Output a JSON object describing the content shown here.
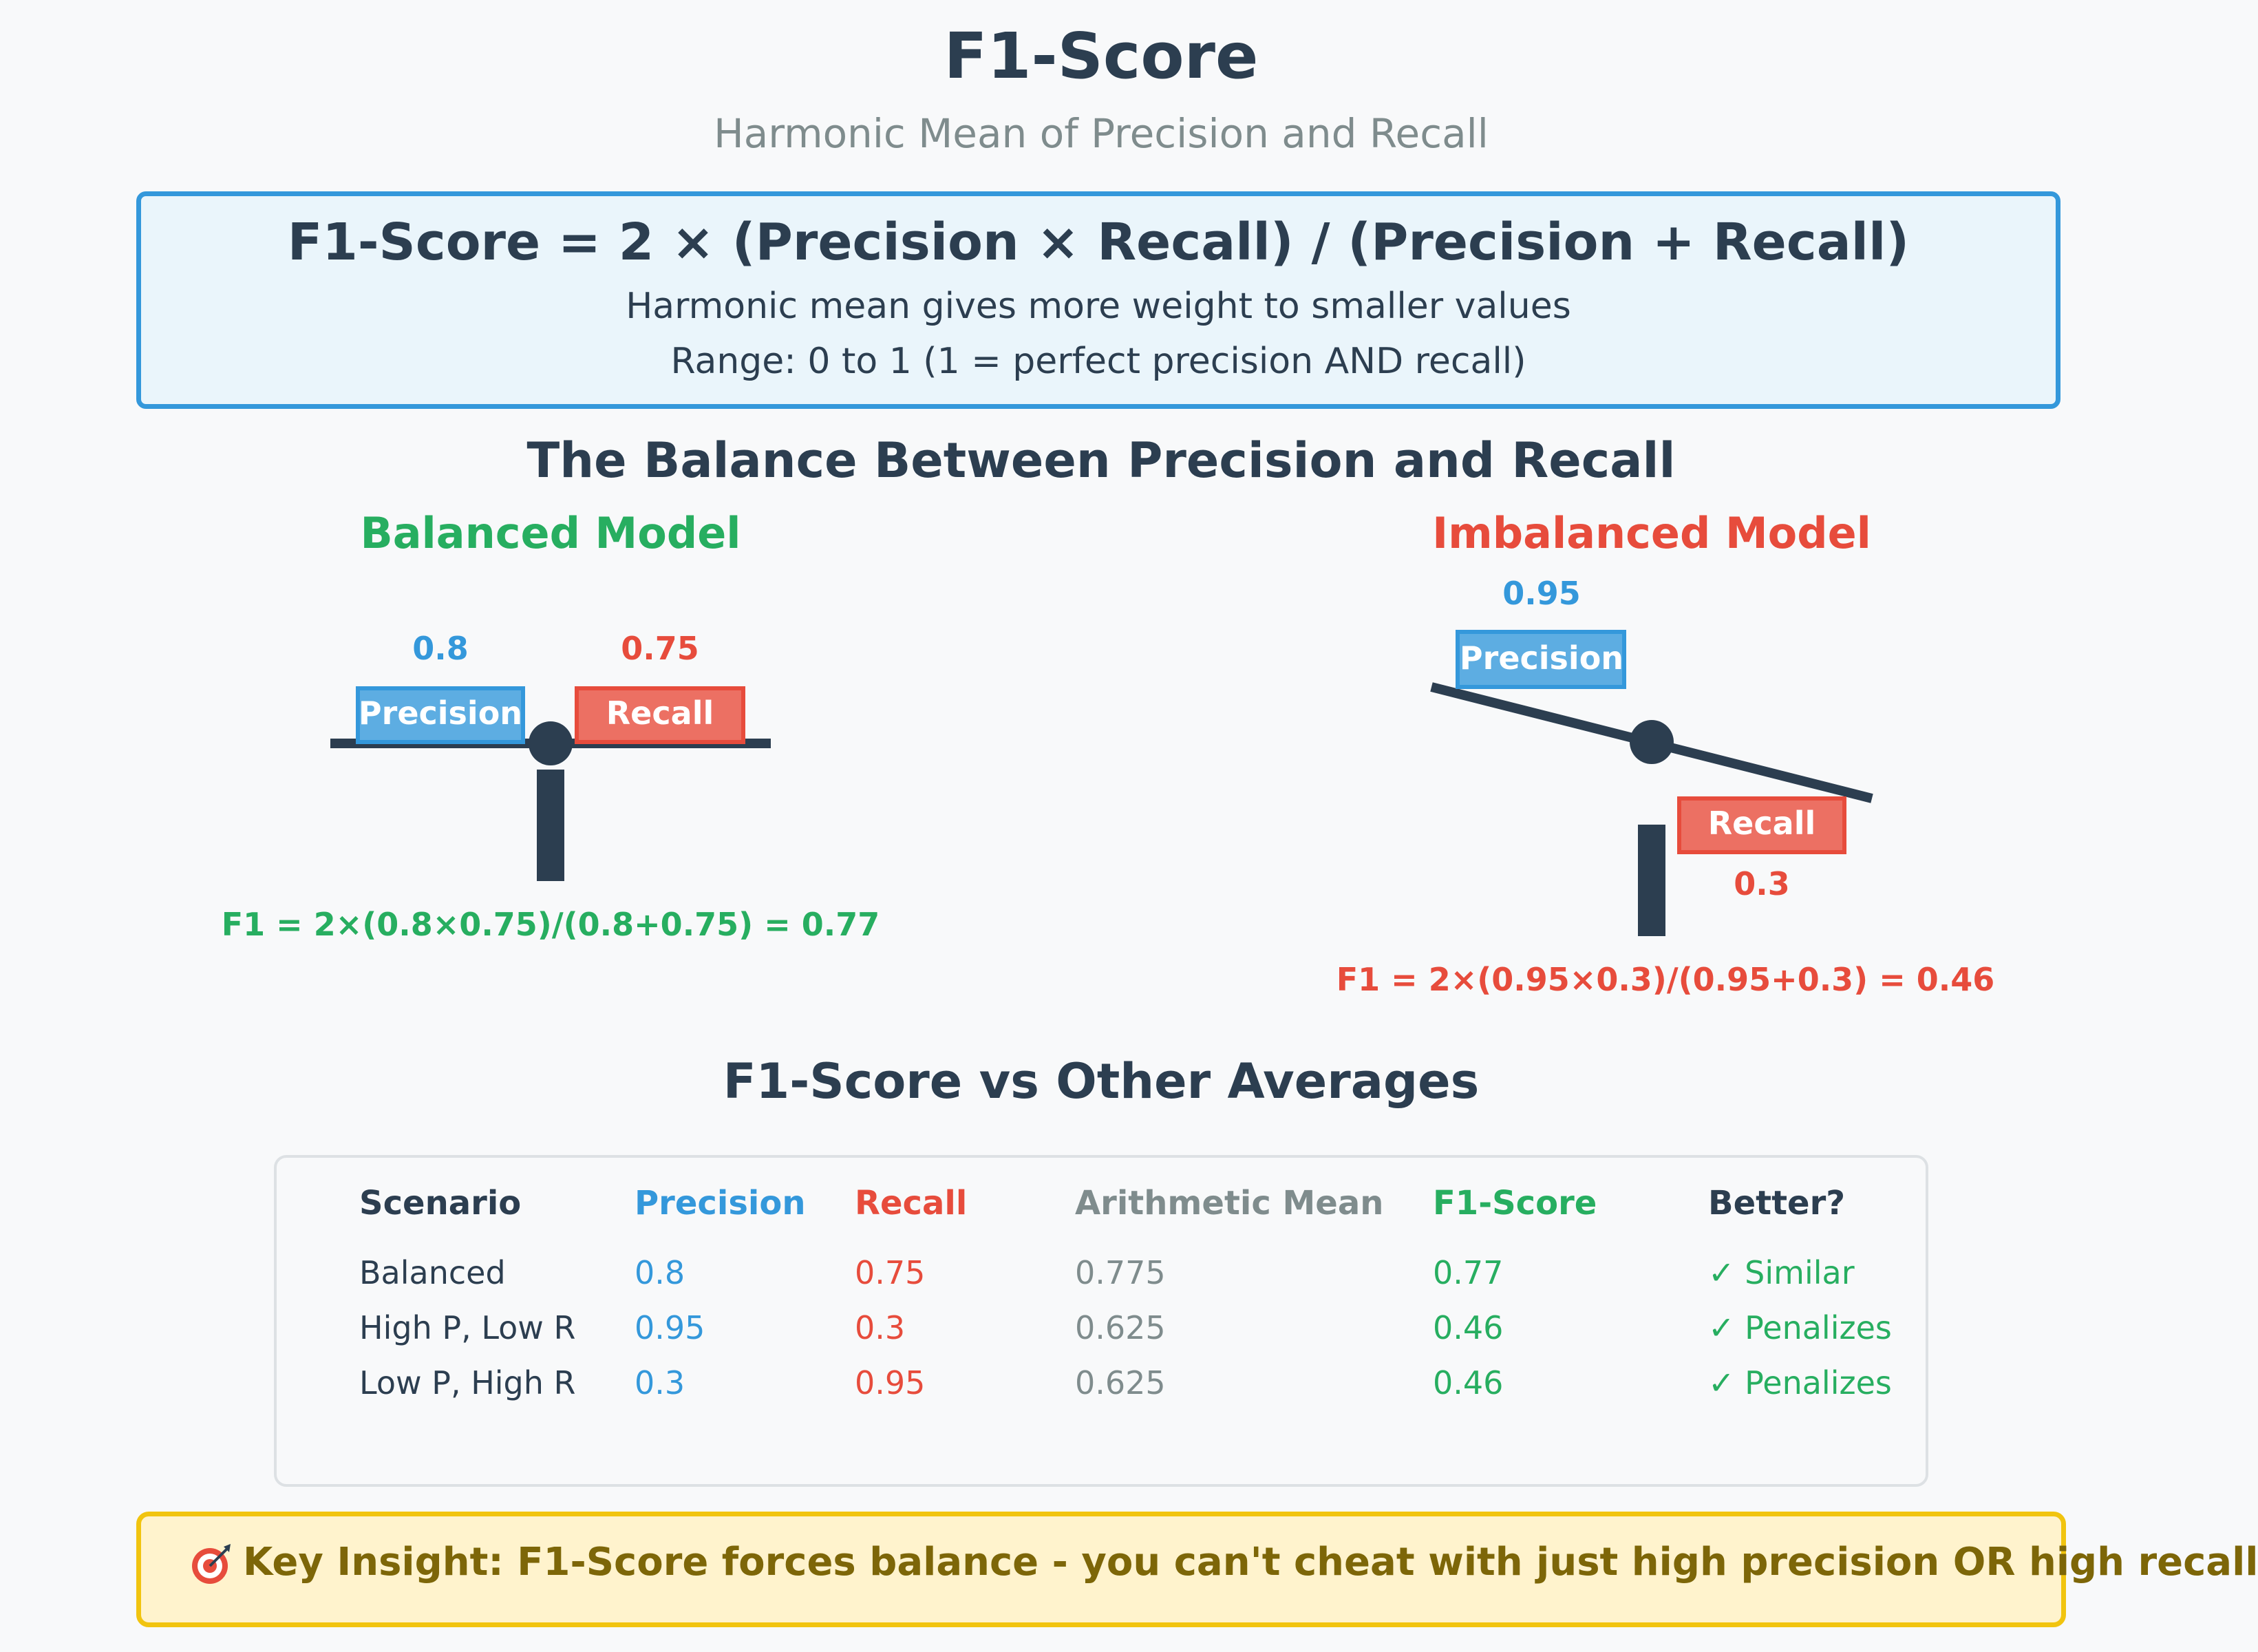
{
  "header": {
    "title": "F1-Score",
    "subtitle": "Harmonic Mean of Precision and Recall"
  },
  "formula": {
    "main": "F1-Score = 2 × (Precision × Recall) / (Precision + Recall)",
    "note1": "Harmonic mean gives more weight to smaller values",
    "note2": "Range: 0 to 1 (1 = perfect precision AND recall)"
  },
  "balance": {
    "heading": "The Balance Between Precision and Recall",
    "balanced": {
      "title": "Balanced Model",
      "precision_label": "Precision",
      "precision_value": "0.8",
      "recall_label": "Recall",
      "recall_value": "0.75",
      "f1_calc": "F1 = 2×(0.8×0.75)/(0.8+0.75) = 0.77"
    },
    "imbalanced": {
      "title": "Imbalanced Model",
      "precision_label": "Precision",
      "precision_value": "0.95",
      "recall_label": "Recall",
      "recall_value": "0.3",
      "f1_calc": "F1 = 2×(0.95×0.3)/(0.95+0.3) = 0.46"
    }
  },
  "comparison": {
    "heading": "F1-Score vs Other Averages",
    "columns": [
      "Scenario",
      "Precision",
      "Recall",
      "Arithmetic Mean",
      "F1-Score",
      "Better?"
    ],
    "rows": [
      [
        "Balanced",
        "0.8",
        "0.75",
        "0.775",
        "0.77",
        "✓ Similar"
      ],
      [
        "High P, Low R",
        "0.95",
        "0.3",
        "0.625",
        "0.46",
        "✓ Penalizes"
      ],
      [
        "Low P, High R",
        "0.3",
        "0.95",
        "0.625",
        "0.46",
        "✓ Penalizes"
      ]
    ]
  },
  "insight": {
    "text": "Key Insight: F1-Score forces balance - you can't cheat with just high precision OR high recall"
  },
  "colors": {
    "precision": "#3498db",
    "recall": "#e74c3c",
    "f1": "#27ae60",
    "mean": "#7f8c8d",
    "dark": "#2c3e50",
    "warning_border": "#f1c40f"
  }
}
